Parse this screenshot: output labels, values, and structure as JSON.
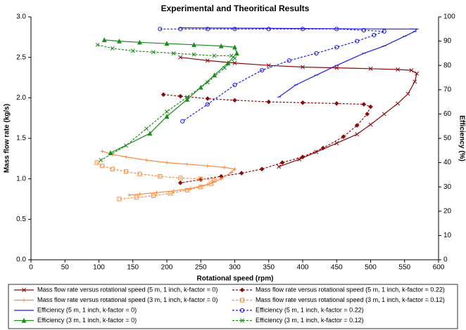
{
  "chart_data": {
    "type": "line",
    "title": "Experimental and Theoritical Results",
    "x_label": "Rotational speed (rpm)",
    "y_label": "Mass flow rate (kg/s)",
    "y2_label": "Efficiency (%)",
    "xlim": [
      0,
      600
    ],
    "xticks": [
      0,
      50,
      100,
      150,
      200,
      250,
      300,
      350,
      400,
      450,
      500,
      550,
      600
    ],
    "ylim": [
      0,
      3
    ],
    "yticks": [
      {
        "value": 0,
        "label": "0.0"
      },
      0.5,
      {
        "value": 1,
        "label": "1.0"
      },
      1.5,
      {
        "value": 2,
        "label": "2.0"
      },
      2.5,
      {
        "value": 3,
        "label": "3.0"
      }
    ],
    "y2lim": [
      0,
      100
    ],
    "y2ticks": [
      0,
      10,
      20,
      30,
      40,
      50,
      60,
      70,
      80,
      90,
      100
    ],
    "grid": false,
    "legend": "bottom",
    "series": [
      {
        "name": "Mass flow rate versus rotational speed (5 m, 1 inch, k-factor = 0)",
        "color": "#8b0a0a",
        "line_style": "solid",
        "marker": "x",
        "x": [
          220,
          260,
          300,
          350,
          400,
          450,
          500,
          540,
          560,
          568,
          565,
          555,
          540,
          520,
          500,
          480,
          450,
          420,
          395,
          365
        ],
        "values": [
          2.5,
          2.46,
          2.43,
          2.4,
          2.38,
          2.37,
          2.36,
          2.35,
          2.34,
          2.3,
          2.2,
          2.05,
          1.93,
          1.8,
          1.67,
          1.55,
          1.44,
          1.33,
          1.24,
          1.15
        ]
      },
      {
        "name": "Mass flow rate versus rotational speed (5 m, 1 inch, k-factor = 0.22)",
        "color": "#8b0a0a",
        "line_style": "dashed",
        "marker": "diamond",
        "x": [
          195,
          220,
          260,
          300,
          350,
          400,
          450,
          490,
          500,
          495,
          480,
          460,
          430,
          400,
          370,
          340,
          310,
          280,
          250,
          220
        ],
        "values": [
          2.04,
          2.02,
          1.99,
          1.97,
          1.95,
          1.94,
          1.93,
          1.92,
          1.89,
          1.8,
          1.66,
          1.52,
          1.38,
          1.27,
          1.2,
          1.12,
          1.07,
          1.03,
          0.99,
          0.95
        ]
      },
      {
        "name": "Mass flow rate versus rotational speed (3 m, 1 inch, k-factor = 0)",
        "color": "#ff8a3d",
        "line_style": "solid",
        "marker": "plus",
        "x": [
          105,
          120,
          140,
          170,
          200,
          230,
          260,
          285,
          300,
          295,
          280,
          260,
          235,
          210,
          185,
          160,
          145
        ],
        "values": [
          1.34,
          1.3,
          1.27,
          1.23,
          1.2,
          1.18,
          1.16,
          1.14,
          1.12,
          1.08,
          1.0,
          0.93,
          0.88,
          0.85,
          0.83,
          0.81,
          0.8
        ]
      },
      {
        "name": "Mass flow rate versus rotational speed (3 m, 1 inch, k-factor = 0.12)",
        "color": "#ff8a3d",
        "line_style": "dashed",
        "marker": "square",
        "x": [
          97,
          105,
          120,
          140,
          160,
          190,
          220,
          250,
          270,
          265,
          250,
          230,
          205,
          180,
          155,
          130
        ],
        "values": [
          1.2,
          1.16,
          1.12,
          1.09,
          1.06,
          1.03,
          1.01,
          1.0,
          0.98,
          0.94,
          0.9,
          0.86,
          0.82,
          0.79,
          0.77,
          0.75
        ]
      },
      {
        "name": "Efficiency (5 m, 1 inch, k-factor = 0)",
        "color": "#1c1cf0",
        "line_style": "solid",
        "marker": "dash",
        "axis": "y2",
        "x": [
          220,
          280,
          340,
          400,
          460,
          520,
          560,
          568,
          565,
          550,
          520,
          490,
          450,
          420,
          390,
          365
        ],
        "values": [
          95.5,
          95.4,
          95.3,
          95.2,
          95.1,
          95,
          95,
          95,
          94,
          92,
          88,
          85,
          80,
          76,
          72,
          67
        ]
      },
      {
        "name": "Efficiency (5 m, 1 inch, k-factor = 0.22)",
        "color": "#1c1cf0",
        "line_style": "dashed",
        "marker": "circle",
        "axis": "y2",
        "x": [
          190,
          220,
          260,
          300,
          350,
          400,
          450,
          490,
          520,
          505,
          480,
          450,
          420,
          380,
          340,
          300,
          260,
          223
        ],
        "values": [
          95,
          95,
          95,
          95,
          95,
          95,
          95,
          94.5,
          94,
          92.5,
          90,
          87.5,
          85,
          82,
          78,
          72,
          64,
          57
        ]
      },
      {
        "name": "Efficiency (3 m, 1 inch, k-factor = 0)",
        "color": "#1a8c1a",
        "line_style": "solid",
        "marker": "triangle",
        "axis": "y2",
        "x": [
          108,
          130,
          160,
          200,
          240,
          280,
          300,
          303,
          290,
          270,
          250,
          230,
          200,
          175,
          117
        ],
        "values": [
          90.5,
          90,
          89.5,
          89,
          88.5,
          88,
          87.5,
          85,
          81,
          76,
          71,
          66,
          59,
          52,
          44
        ]
      },
      {
        "name": "Efficiency (3 m, 1 inch, k-factor = 0.12)",
        "color": "#1a8c1a",
        "line_style": "dashed",
        "marker": "x",
        "axis": "y2",
        "x": [
          98,
          120,
          150,
          180,
          210,
          240,
          270,
          295,
          300,
          285,
          260,
          230,
          200,
          170,
          140,
          103
        ],
        "values": [
          88.5,
          87,
          86,
          85.5,
          85,
          84.5,
          84,
          84,
          83,
          79,
          73,
          67,
          61,
          54,
          47,
          41
        ]
      }
    ]
  }
}
